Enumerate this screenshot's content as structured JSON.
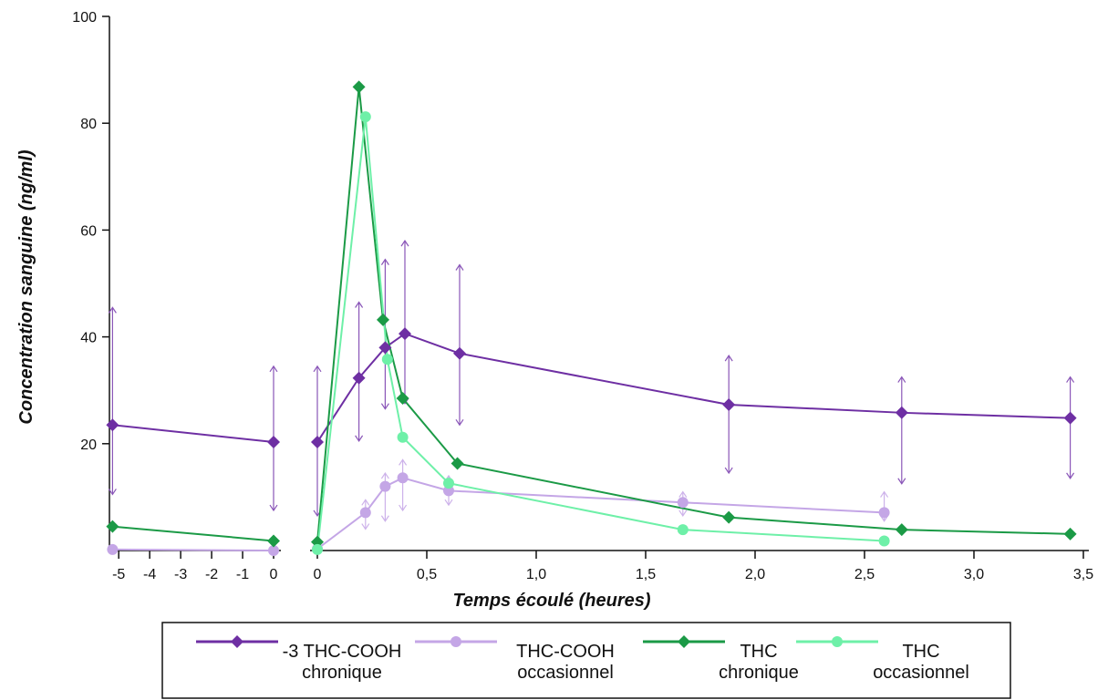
{
  "chart_data": {
    "type": "line",
    "ylabel": "Concentration sanguine (ng/ml)",
    "xlabel": "Temps écoulé (heures)",
    "ylim": [
      0,
      100
    ],
    "yticks": [
      "20",
      "40",
      "60",
      "80",
      "100"
    ],
    "xticks_left": [
      "-5",
      "-4",
      "-3",
      "-2",
      "-1",
      "0"
    ],
    "xticks_right": [
      "0",
      "0,5",
      "1,0",
      "1,5",
      "2,0",
      "2,5",
      "3,0",
      "3,5"
    ],
    "xlim_left": [
      -5.3,
      0
    ],
    "xlim_right": [
      0,
      3.5
    ],
    "series": [
      {
        "name_line1": "-3 THC-COOH",
        "name_line2": "chronique",
        "color": "#6e2fa3",
        "marker": "diamond",
        "left": {
          "x": [
            -5.2,
            0
          ],
          "y": [
            23.5,
            20.3
          ]
        },
        "right": {
          "x": [
            0,
            0.19,
            0.31,
            0.4,
            0.65,
            1.88,
            2.67,
            3.44
          ],
          "y": [
            20.3,
            32.3,
            38,
            40.6,
            36.9,
            27.3,
            25.8,
            24.8
          ]
        },
        "error_bars": [
          {
            "x": -5.2,
            "lo": 10.5,
            "hi": 45.5,
            "panel": "left"
          },
          {
            "x": 0,
            "lo": 7.5,
            "hi": 34.5,
            "panel": "left"
          },
          {
            "x": 0,
            "lo": 6.5,
            "hi": 34.5,
            "panel": "right"
          },
          {
            "x": 0.19,
            "lo": 20.5,
            "hi": 46.5,
            "panel": "right"
          },
          {
            "x": 0.31,
            "lo": 26.5,
            "hi": 54.5,
            "panel": "right"
          },
          {
            "x": 0.4,
            "lo": 27.5,
            "hi": 58,
            "panel": "right"
          },
          {
            "x": 0.65,
            "lo": 23.5,
            "hi": 53.5,
            "panel": "right"
          },
          {
            "x": 1.88,
            "lo": 14.5,
            "hi": 36.5,
            "panel": "right"
          },
          {
            "x": 2.67,
            "lo": 12.5,
            "hi": 32.5,
            "panel": "right"
          },
          {
            "x": 3.44,
            "lo": 13.5,
            "hi": 32.5,
            "panel": "right"
          }
        ]
      },
      {
        "name_line1": "THC-COOH",
        "name_line2": "occasionnel",
        "color": "#c4a6e6",
        "marker": "circle",
        "left": {
          "x": [
            -5.2,
            0
          ],
          "y": [
            0.2,
            0
          ]
        },
        "right": {
          "x": [
            0,
            0.22,
            0.31,
            0.39,
            0.6,
            1.67,
            2.59
          ],
          "y": [
            0.3,
            7.1,
            12,
            13.6,
            11.2,
            9,
            7.1
          ]
        },
        "error_bars": [
          {
            "x": 0.22,
            "lo": 4,
            "hi": 9.5,
            "panel": "right"
          },
          {
            "x": 0.31,
            "lo": 5.5,
            "hi": 14.5,
            "panel": "right"
          },
          {
            "x": 0.39,
            "lo": 7.5,
            "hi": 17,
            "panel": "right"
          },
          {
            "x": 0.6,
            "lo": 8.5,
            "hi": 14,
            "panel": "right"
          },
          {
            "x": 1.67,
            "lo": 6.5,
            "hi": 11,
            "panel": "right"
          },
          {
            "x": 2.59,
            "lo": 5.5,
            "hi": 11,
            "panel": "right"
          }
        ]
      },
      {
        "name_line1": "THC",
        "name_line2": "chronique",
        "color": "#1b9a46",
        "marker": "diamond",
        "left": {
          "x": [
            -5.2,
            0
          ],
          "y": [
            4.5,
            1.8
          ]
        },
        "right": {
          "x": [
            0,
            0.19,
            0.3,
            0.39,
            0.64,
            1.88,
            2.67,
            3.44
          ],
          "y": [
            1.6,
            86.8,
            43.2,
            28.5,
            16.3,
            6.2,
            3.9,
            3.1
          ]
        },
        "error_bars": []
      },
      {
        "name_line1": "THC",
        "name_line2": "occasionnel",
        "color": "#6ef0a8",
        "marker": "circle",
        "left": {
          "x": [],
          "y": []
        },
        "right": {
          "x": [
            0,
            0.22,
            0.32,
            0.39,
            0.6,
            1.67,
            2.59
          ],
          "y": [
            0.2,
            81.2,
            35.8,
            21.2,
            12.6,
            3.9,
            1.8
          ]
        },
        "error_bars": []
      }
    ]
  }
}
